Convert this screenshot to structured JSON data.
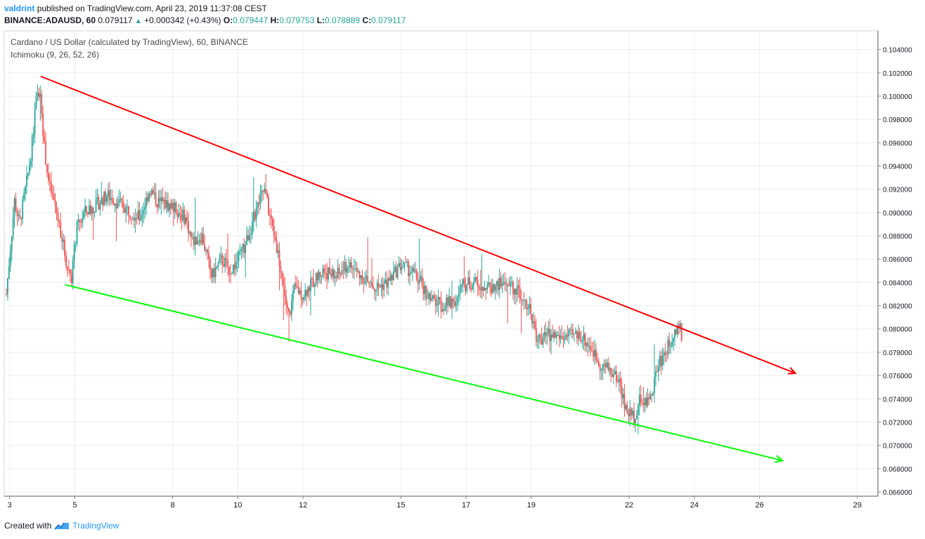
{
  "header": {
    "author": "valdrint",
    "published": "published on TradingView.com, April 23, 2019 11:37:08 CEST",
    "symbol": "BINANCE:ADAUSD, 60",
    "last": "0.079117",
    "change": "+0.000342 (+0.43%)",
    "o_label": "O:",
    "o": "0.079447",
    "h_label": "H:",
    "h": "0.079753",
    "l_label": "L:",
    "l": "0.078889",
    "c_label": "C:",
    "c": "0.079117"
  },
  "legend": {
    "title": "Cardano / US Dollar (calculated by TradingView), 60, BINANCE",
    "indicator": "Ichimoku (9, 26, 52, 26)"
  },
  "footer": {
    "created": "Created with",
    "brand": "TradingView"
  },
  "colors": {
    "up": "#26a69a",
    "down": "#ef5350",
    "resistance": "#ff0000",
    "support": "#00ff00",
    "grid": "#e9eef5",
    "axis": "#888888",
    "brand": "#2196f3"
  },
  "chart_data": {
    "type": "candlestick",
    "title": "Cardano / US Dollar (calculated by TradingView), 60, BINANCE",
    "ylim": [
      0.066,
      0.105
    ],
    "yticks": [
      "0.066000",
      "0.068000",
      "0.070000",
      "0.072000",
      "0.074000",
      "0.076000",
      "0.078000",
      "0.080000",
      "0.082000",
      "0.084000",
      "0.086000",
      "0.088000",
      "0.090000",
      "0.092000",
      "0.094000",
      "0.096000",
      "0.098000",
      "0.100000",
      "0.102000",
      "0.104000"
    ],
    "xlim": [
      2.9,
      29.5
    ],
    "xticks": [
      {
        "day": 3,
        "label": "3"
      },
      {
        "day": 5,
        "label": "5"
      },
      {
        "day": 8,
        "label": "8"
      },
      {
        "day": 10,
        "label": "10"
      },
      {
        "day": 12,
        "label": "12"
      },
      {
        "day": 15,
        "label": "15"
      },
      {
        "day": 17,
        "label": "17"
      },
      {
        "day": 19,
        "label": "19"
      },
      {
        "day": 22,
        "label": "22"
      },
      {
        "day": 24,
        "label": "24"
      },
      {
        "day": 26,
        "label": "26"
      },
      {
        "day": 29,
        "label": "29"
      }
    ],
    "price_path": [
      [
        2.9,
        0.083
      ],
      [
        3.15,
        0.091
      ],
      [
        3.3,
        0.089
      ],
      [
        3.55,
        0.093
      ],
      [
        3.7,
        0.096
      ],
      [
        3.8,
        0.0995
      ],
      [
        3.95,
        0.1005
      ],
      [
        4.05,
        0.096
      ],
      [
        4.2,
        0.0925
      ],
      [
        4.4,
        0.0905
      ],
      [
        4.6,
        0.088
      ],
      [
        4.75,
        0.0855
      ],
      [
        4.9,
        0.0845
      ],
      [
        5.05,
        0.0885
      ],
      [
        5.3,
        0.09
      ],
      [
        5.6,
        0.0905
      ],
      [
        6.0,
        0.0915
      ],
      [
        6.5,
        0.0905
      ],
      [
        7.0,
        0.0895
      ],
      [
        7.3,
        0.092
      ],
      [
        7.5,
        0.091
      ],
      [
        8.0,
        0.0905
      ],
      [
        8.4,
        0.0895
      ],
      [
        8.6,
        0.0875
      ],
      [
        8.9,
        0.088
      ],
      [
        9.2,
        0.0845
      ],
      [
        9.5,
        0.086
      ],
      [
        9.8,
        0.085
      ],
      [
        10.2,
        0.087
      ],
      [
        10.6,
        0.0905
      ],
      [
        10.8,
        0.092
      ],
      [
        11.0,
        0.0895
      ],
      [
        11.2,
        0.087
      ],
      [
        11.35,
        0.0845
      ],
      [
        11.55,
        0.081
      ],
      [
        11.75,
        0.0835
      ],
      [
        12.0,
        0.083
      ],
      [
        12.3,
        0.084
      ],
      [
        12.6,
        0.085
      ],
      [
        13.0,
        0.0845
      ],
      [
        13.4,
        0.0855
      ],
      [
        13.8,
        0.0845
      ],
      [
        14.2,
        0.0835
      ],
      [
        14.6,
        0.084
      ],
      [
        15.0,
        0.0855
      ],
      [
        15.3,
        0.085
      ],
      [
        15.6,
        0.084
      ],
      [
        15.9,
        0.0825
      ],
      [
        16.3,
        0.082
      ],
      [
        16.7,
        0.0825
      ],
      [
        16.9,
        0.0838
      ],
      [
        17.3,
        0.084
      ],
      [
        17.7,
        0.0835
      ],
      [
        18.2,
        0.084
      ],
      [
        18.7,
        0.083
      ],
      [
        19.0,
        0.0815
      ],
      [
        19.15,
        0.079
      ],
      [
        19.5,
        0.0795
      ],
      [
        20.0,
        0.0793
      ],
      [
        20.5,
        0.0795
      ],
      [
        20.8,
        0.0785
      ],
      [
        21.1,
        0.077
      ],
      [
        21.4,
        0.0765
      ],
      [
        21.7,
        0.0755
      ],
      [
        21.9,
        0.073
      ],
      [
        22.15,
        0.0725
      ],
      [
        22.35,
        0.074
      ],
      [
        22.6,
        0.0735
      ],
      [
        22.9,
        0.077
      ],
      [
        23.2,
        0.0785
      ],
      [
        23.4,
        0.08
      ],
      [
        23.55,
        0.0802
      ],
      [
        23.62,
        0.0791
      ]
    ],
    "trend_lines": [
      {
        "name": "resistance",
        "color": "#ff0000",
        "from": [
          3.95,
          0.1017
        ],
        "to": [
          27.1,
          0.0762
        ],
        "arrow": true
      },
      {
        "name": "support",
        "color": "#00ff00",
        "from": [
          4.7,
          0.0838
        ],
        "to": [
          26.7,
          0.0687
        ],
        "arrow": true
      }
    ]
  }
}
